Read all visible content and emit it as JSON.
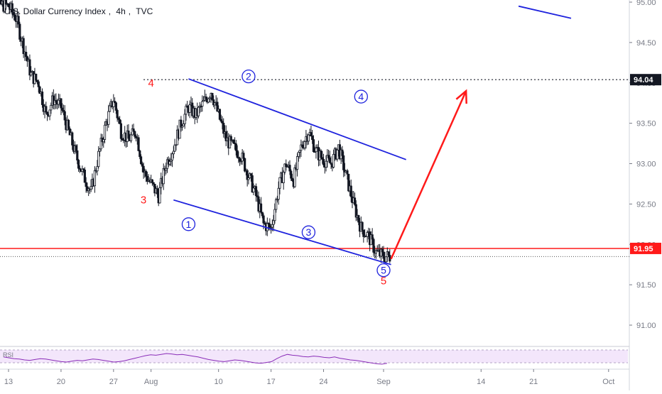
{
  "legend": {
    "symbol": "U.S. Dollar Currency Index",
    "interval": "4h",
    "source": "TVC"
  },
  "colors": {
    "candle": "#131722",
    "channel": "#1e22dd",
    "wave_label": "#1e22dd",
    "red": "#ff1a1a",
    "rsi_band": "#f3e6fb",
    "rsi_line": "#8a2db8"
  },
  "chart_data": {
    "type": "candlestick",
    "y_axis": {
      "ticks": [
        "95.00",
        "94.50",
        "94.00",
        "93.50",
        "93.00",
        "92.50",
        "92.00",
        "91.50",
        "91.00"
      ],
      "range": [
        90.55,
        95.05
      ]
    },
    "x_axis": {
      "ticks": [
        "13",
        "20",
        "27",
        "Aug",
        "10",
        "17",
        "24",
        "Sep",
        "14",
        "21",
        "Oct"
      ],
      "range": [
        "2020-07-10",
        "2020-10-03"
      ]
    },
    "price_labels": [
      {
        "value": "94.04",
        "style": "black"
      },
      {
        "value": "91.95",
        "style": "red"
      }
    ],
    "levels": [
      {
        "price": 94.04,
        "style": "dotted-black"
      },
      {
        "price": 91.95,
        "style": "solid-red"
      },
      {
        "price": 91.85,
        "style": "dotted-gray"
      }
    ],
    "close_path": [
      [
        "2020-07-10",
        95.0
      ],
      [
        "2020-07-13",
        94.95
      ],
      [
        "2020-07-14",
        94.8
      ],
      [
        "2020-07-15",
        94.45
      ],
      [
        "2020-07-16",
        94.1
      ],
      [
        "2020-07-17",
        94.0
      ],
      [
        "2020-07-18",
        93.6
      ],
      [
        "2020-07-19",
        93.8
      ],
      [
        "2020-07-20",
        93.7
      ],
      [
        "2020-07-21",
        93.4
      ],
      [
        "2020-07-22",
        93.1
      ],
      [
        "2020-07-23",
        92.85
      ],
      [
        "2020-07-24",
        92.65
      ],
      [
        "2020-07-25",
        93.1
      ],
      [
        "2020-07-26",
        93.5
      ],
      [
        "2020-07-27",
        93.8
      ],
      [
        "2020-07-28",
        93.4
      ],
      [
        "2020-07-29",
        93.3
      ],
      [
        "2020-07-30",
        93.4
      ],
      [
        "2020-07-31",
        92.9
      ],
      [
        "2020-08-01",
        92.75
      ],
      [
        "2020-08-02",
        92.6
      ],
      [
        "2020-08-03",
        93.0
      ],
      [
        "2020-08-04",
        93.2
      ],
      [
        "2020-08-05",
        93.5
      ],
      [
        "2020-08-06",
        93.7
      ],
      [
        "2020-08-07",
        93.6
      ],
      [
        "2020-08-08",
        93.75
      ],
      [
        "2020-08-09",
        93.9
      ],
      [
        "2020-08-10",
        93.6
      ],
      [
        "2020-08-11",
        93.3
      ],
      [
        "2020-08-12",
        93.2
      ],
      [
        "2020-08-13",
        93.1
      ],
      [
        "2020-08-14",
        92.85
      ],
      [
        "2020-08-15",
        92.6
      ],
      [
        "2020-08-16",
        92.25
      ],
      [
        "2020-08-17",
        92.2
      ],
      [
        "2020-08-18",
        92.7
      ],
      [
        "2020-08-19",
        93.0
      ],
      [
        "2020-08-20",
        92.8
      ],
      [
        "2020-08-21",
        93.2
      ],
      [
        "2020-08-22",
        93.4
      ],
      [
        "2020-08-23",
        93.15
      ],
      [
        "2020-08-24",
        93.05
      ],
      [
        "2020-08-25",
        93.0
      ],
      [
        "2020-08-26",
        93.2
      ],
      [
        "2020-08-27",
        92.85
      ],
      [
        "2020-08-28",
        92.5
      ],
      [
        "2020-08-29",
        92.2
      ],
      [
        "2020-08-30",
        92.1
      ],
      [
        "2020-08-31",
        91.9
      ],
      [
        "2020-09-01",
        91.85
      ]
    ],
    "channel_lines": [
      {
        "from": [
          "2020-08-06",
          94.05
        ],
        "to": [
          "2020-09-04",
          93.05
        ]
      },
      {
        "from": [
          "2020-08-04",
          92.55
        ],
        "to": [
          "2020-09-02",
          91.75
        ]
      },
      {
        "from": [
          "2020-09-19",
          94.95
        ],
        "to": [
          "2020-09-26",
          94.8
        ]
      }
    ],
    "forecast_arrow": {
      "from": [
        "2020-09-02",
        91.82
      ],
      "to": [
        "2020-09-12",
        93.9
      ]
    },
    "wave_labels": [
      {
        "text": "1",
        "date": "2020-08-06",
        "price": 92.25
      },
      {
        "text": "2",
        "date": "2020-08-14",
        "price": 94.08
      },
      {
        "text": "3",
        "date": "2020-08-22",
        "price": 92.15
      },
      {
        "text": "4",
        "date": "2020-08-29",
        "price": 93.83
      },
      {
        "text": "5",
        "date": "2020-09-01",
        "price": 91.68
      }
    ],
    "red_labels": [
      {
        "text": "4",
        "date": "2020-08-01",
        "price": 94.0
      },
      {
        "text": "3",
        "date": "2020-07-31",
        "price": 92.55
      },
      {
        "text": "5",
        "date": "2020-09-01",
        "price": 91.55
      }
    ],
    "rsi": {
      "band_label": "RSI",
      "values": [
        52,
        50,
        48,
        47,
        45,
        44,
        46,
        48,
        47,
        45,
        43,
        41,
        40,
        42,
        44,
        43,
        45,
        47,
        46,
        44,
        42,
        40,
        41,
        43,
        46,
        49,
        52,
        55,
        57,
        56,
        58,
        60,
        59,
        57,
        58,
        56,
        54,
        52,
        49,
        46,
        44,
        42,
        41,
        43,
        45,
        44,
        42,
        40,
        38,
        37,
        39,
        41,
        48,
        54,
        58,
        56,
        55,
        53,
        52,
        54,
        53,
        51,
        50,
        52,
        49,
        47,
        45,
        44,
        42,
        40,
        38,
        36,
        35,
        37
      ]
    }
  }
}
